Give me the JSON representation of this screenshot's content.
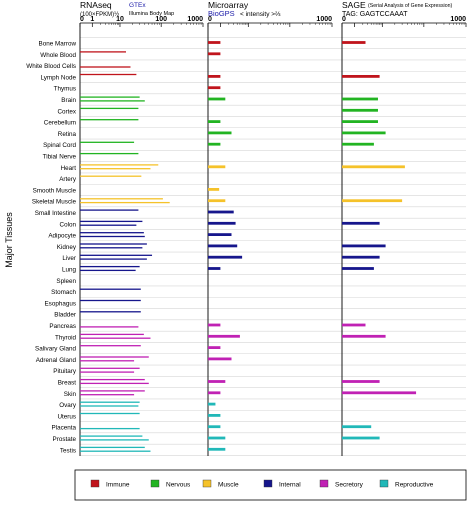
{
  "chart_data": {
    "type": "bar",
    "ylabel": "Major Tissues",
    "scale": "log",
    "tick_labels": [
      "0",
      "1",
      "10",
      "100",
      "1000"
    ],
    "tissues": [
      {
        "name": "Bone Marrow",
        "category": "Immune"
      },
      {
        "name": "Whole Blood",
        "category": "Immune"
      },
      {
        "name": "White Blood Cells",
        "category": "Immune"
      },
      {
        "name": "Lymph Node",
        "category": "Immune"
      },
      {
        "name": "Thymus",
        "category": "Immune"
      },
      {
        "name": "Brain",
        "category": "Nervous"
      },
      {
        "name": "Cortex",
        "category": "Nervous"
      },
      {
        "name": "Cerebellum",
        "category": "Nervous"
      },
      {
        "name": "Retina",
        "category": "Nervous"
      },
      {
        "name": "Spinal Cord",
        "category": "Nervous"
      },
      {
        "name": "Tibial Nerve",
        "category": "Nervous"
      },
      {
        "name": "Heart",
        "category": "Muscle"
      },
      {
        "name": "Artery",
        "category": "Muscle"
      },
      {
        "name": "Smooth Muscle",
        "category": "Muscle"
      },
      {
        "name": "Skeletal Muscle",
        "category": "Muscle"
      },
      {
        "name": "Small Intestine",
        "category": "Internal"
      },
      {
        "name": "Colon",
        "category": "Internal"
      },
      {
        "name": "Adipocyte",
        "category": "Internal"
      },
      {
        "name": "Kidney",
        "category": "Internal"
      },
      {
        "name": "Liver",
        "category": "Internal"
      },
      {
        "name": "Lung",
        "category": "Internal"
      },
      {
        "name": "Spleen",
        "category": "Internal"
      },
      {
        "name": "Stomach",
        "category": "Internal"
      },
      {
        "name": "Esophagus",
        "category": "Internal"
      },
      {
        "name": "Bladder",
        "category": "Internal"
      },
      {
        "name": "Pancreas",
        "category": "Secretory"
      },
      {
        "name": "Thyroid",
        "category": "Secretory"
      },
      {
        "name": "Salivary Gland",
        "category": "Secretory"
      },
      {
        "name": "Adrenal Gland",
        "category": "Secretory"
      },
      {
        "name": "Pituitary",
        "category": "Secretory"
      },
      {
        "name": "Breast",
        "category": "Secretory"
      },
      {
        "name": "Skin",
        "category": "Secretory"
      },
      {
        "name": "Ovary",
        "category": "Reproductive"
      },
      {
        "name": "Uterus",
        "category": "Reproductive"
      },
      {
        "name": "Placenta",
        "category": "Reproductive"
      },
      {
        "name": "Prostate",
        "category": "Reproductive"
      },
      {
        "name": "Testis",
        "category": "Reproductive"
      }
    ],
    "categories": [
      {
        "name": "Immune",
        "color": "#c0141c"
      },
      {
        "name": "Nervous",
        "color": "#22b422"
      },
      {
        "name": "Muscle",
        "color": "#f5c22a"
      },
      {
        "name": "Internal",
        "color": "#16168c"
      },
      {
        "name": "Secretory",
        "color": "#c021b4"
      },
      {
        "name": "Reproductive",
        "color": "#21b8b8"
      }
    ],
    "panels": [
      {
        "key": "rnaseq",
        "title": "RNAseq",
        "subtitle": "(100×FPKM)½",
        "source": "GTEx",
        "source2": "Illumina Body Map",
        "axis_max_label": "1000",
        "series": [
          {
            "name": "GTEx",
            "values": [
              null,
              14,
              null,
              25,
              null,
              30,
              28,
              28,
              null,
              22,
              28,
              85,
              33,
              null,
              110,
              28,
              35,
              38,
              45,
              60,
              30,
              null,
              32,
              32,
              32,
              null,
              38,
              32,
              50,
              30,
              40,
              40,
              30,
              30,
              null,
              35,
              40
            ]
          },
          {
            "name": "Illumina Body Map",
            "values": [
              null,
              null,
              18,
              null,
              null,
              40,
              null,
              null,
              null,
              null,
              null,
              55,
              null,
              null,
              160,
              null,
              25,
              40,
              35,
              45,
              24,
              null,
              null,
              null,
              null,
              28,
              55,
              null,
              22,
              22,
              50,
              22,
              28,
              null,
              30,
              50,
              55
            ]
          }
        ]
      },
      {
        "key": "microarray",
        "title": "Microarray",
        "subtitle": "< intensity >⅔",
        "source": "BioGPS",
        "axis_max_label": "1000",
        "series": [
          {
            "name": "BioGPS",
            "values": [
              1.0,
              1.0,
              null,
              1.0,
              1.0,
              1.5,
              null,
              1.0,
              2.5,
              1.0,
              null,
              1.5,
              null,
              0.9,
              1.5,
              3.0,
              3.5,
              2.5,
              4.0,
              6.0,
              1.0,
              null,
              null,
              null,
              null,
              1.0,
              5.0,
              1.0,
              2.5,
              null,
              1.5,
              1.0,
              0.6,
              1.0,
              1.0,
              1.5,
              1.5
            ]
          }
        ]
      },
      {
        "key": "sage",
        "title": "SAGE",
        "subtitle": "TAG: GAGTCCAAAT",
        "source_note": "(Serial Analysis of Gene Expression)",
        "axis_max_label": "1000",
        "series": [
          {
            "name": "SAGE",
            "values": [
              2.5,
              null,
              null,
              8.0,
              null,
              7.0,
              7.0,
              7.0,
              12.0,
              5.0,
              null,
              35.0,
              null,
              null,
              30.0,
              null,
              8.0,
              null,
              12.0,
              8.0,
              5.0,
              null,
              null,
              null,
              null,
              2.5,
              12.0,
              null,
              null,
              null,
              8.0,
              65.0,
              null,
              null,
              4.0,
              8.0,
              null
            ]
          }
        ]
      }
    ]
  }
}
